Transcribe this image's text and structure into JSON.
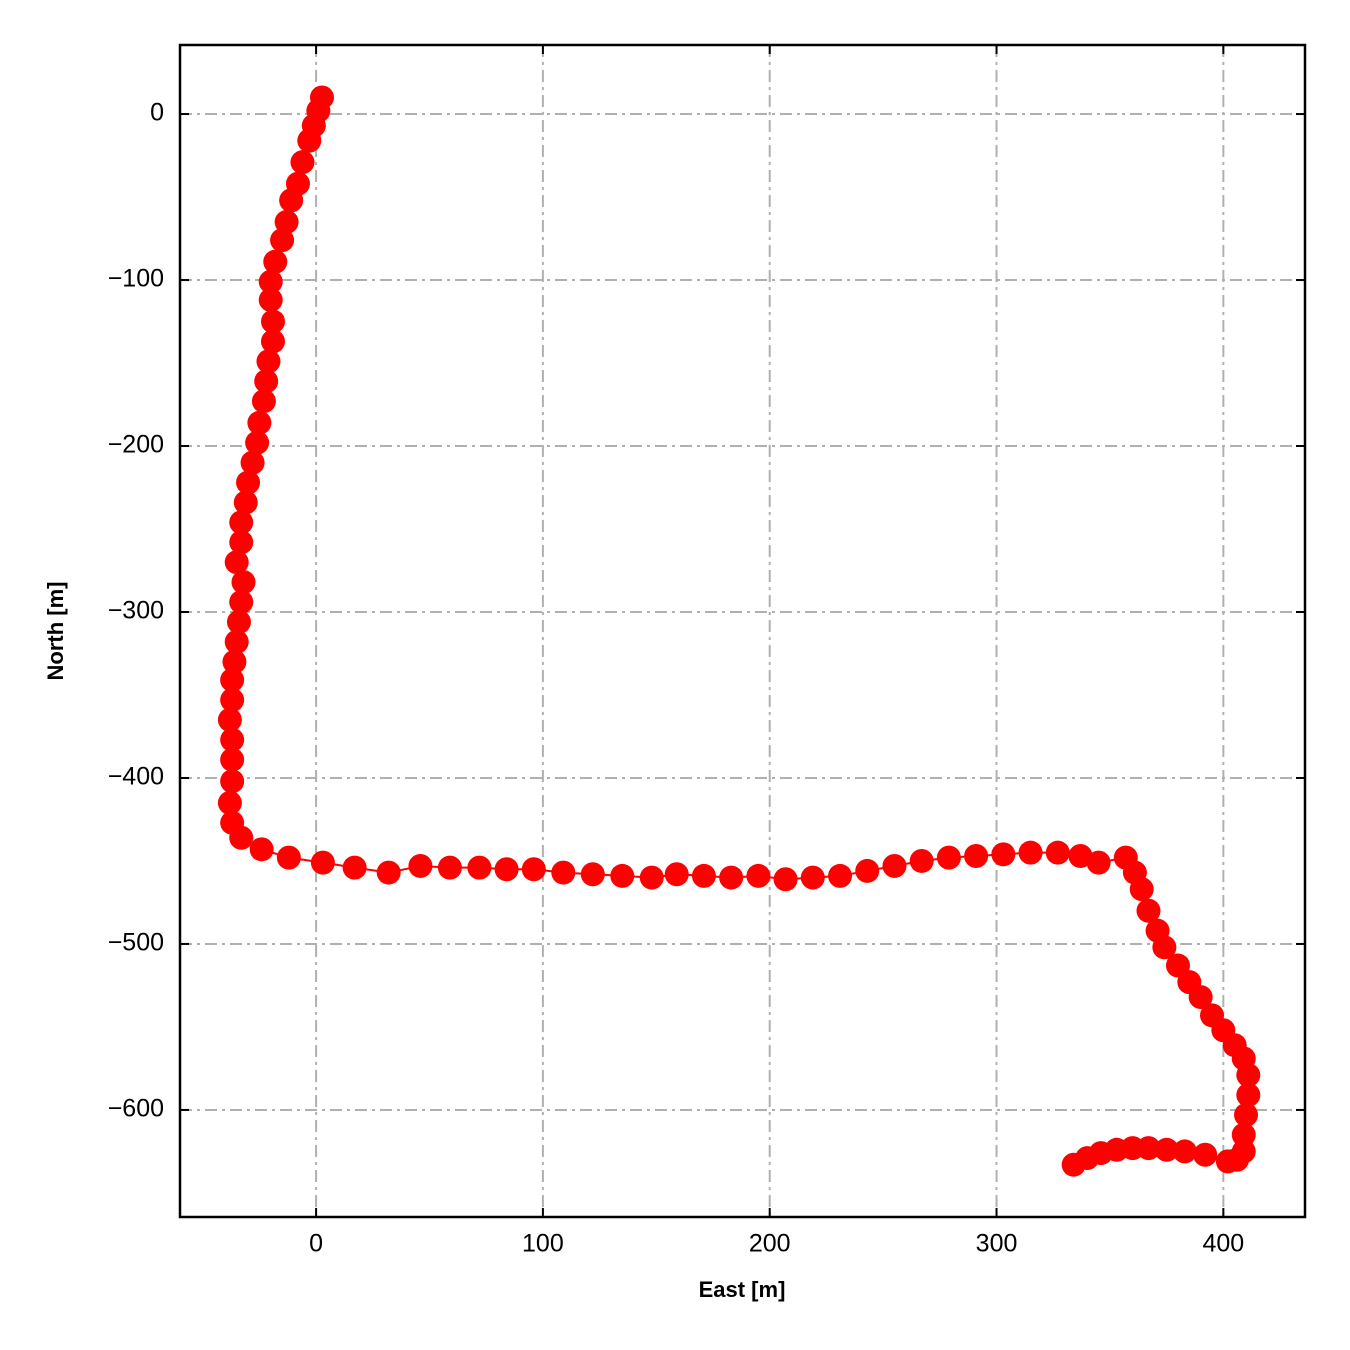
{
  "chart_data": {
    "type": "scatter",
    "x_label": "East [m]",
    "y_label": "North [m]",
    "color": "#ff0000",
    "grid": true,
    "xlim": [
      -60,
      436
    ],
    "ylim": [
      -664.5,
      41.6
    ],
    "xticks": [
      0,
      100,
      200,
      300,
      400
    ],
    "yticks": [
      0,
      {
        "value": -100,
        "label": "−100"
      },
      {
        "value": -200,
        "label": "−200"
      },
      {
        "value": -300,
        "label": "−300"
      },
      {
        "value": -400,
        "label": "−400"
      },
      {
        "value": -500,
        "label": "−500"
      },
      {
        "value": -600,
        "label": "−600"
      }
    ],
    "x": [
      2.6,
      1,
      -1,
      -3,
      -6,
      -8,
      -11,
      -13,
      -15,
      -18,
      -20,
      -20,
      -19,
      -19,
      -21,
      -22,
      -23,
      -25,
      -26,
      -28,
      -30,
      -31,
      -33,
      -33,
      -35,
      -32,
      -33,
      -34,
      -35,
      -36,
      -37,
      -37,
      -38,
      -37,
      -37,
      -37,
      -38,
      -37,
      -33,
      -24,
      -12,
      3,
      17,
      32,
      46,
      59,
      72,
      84,
      96,
      109,
      122,
      135,
      148,
      159,
      171,
      183,
      195,
      207,
      219,
      231,
      243,
      255,
      267,
      279,
      291,
      303,
      315,
      327,
      337,
      345,
      357,
      361,
      364,
      367,
      371,
      374,
      380,
      385,
      390,
      395,
      400,
      405,
      409,
      411,
      411,
      410,
      409,
      409,
      406,
      402,
      392,
      383,
      375,
      367,
      360,
      353,
      346,
      340,
      334
    ],
    "values": [
      10,
      2,
      -7,
      -16,
      -29,
      -42,
      -52,
      -65,
      -76,
      -89,
      -101,
      -112,
      -125,
      -137,
      -149,
      -161,
      -173,
      -186,
      -198,
      -210,
      -222,
      -234,
      -246,
      -258,
      -270,
      -282,
      -294,
      -306,
      -318,
      -330,
      -341,
      -353,
      -365,
      -377,
      -389,
      -402,
      -415,
      -427,
      -436,
      -443,
      -448,
      -451,
      -454,
      -457,
      -453,
      -454,
      -454,
      -455,
      -455,
      -457,
      -458,
      -459,
      -460,
      -458,
      -459,
      -460,
      -459,
      -461,
      -460,
      -459,
      -456,
      -453,
      -450,
      -448,
      -447,
      -446,
      -445,
      -445,
      -447,
      -451,
      -448,
      -457,
      -467,
      -480,
      -492,
      -502,
      -513,
      -523,
      -532,
      -543,
      -552,
      -561,
      -569,
      -579,
      -591,
      -603,
      -615,
      -625,
      -630,
      -631,
      -627,
      -625,
      -624,
      -623,
      -623,
      -624,
      -626,
      -629,
      -633
    ]
  }
}
